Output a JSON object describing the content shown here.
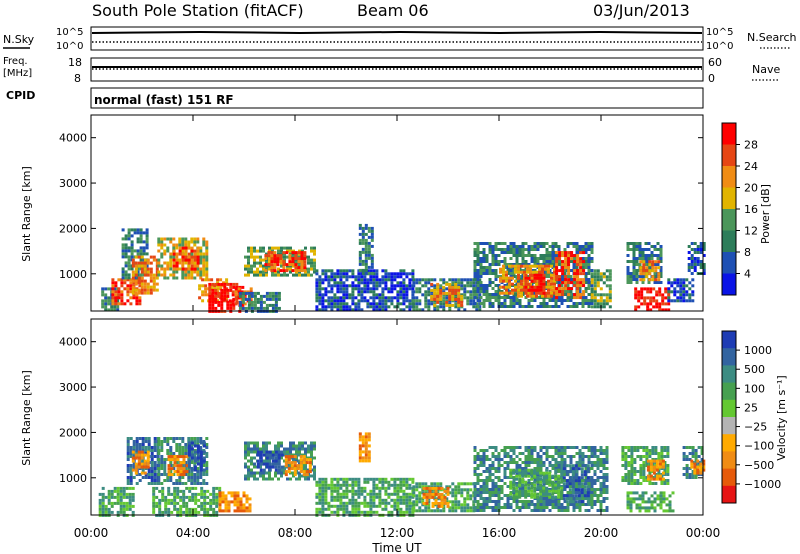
{
  "header": {
    "station": "South Pole Station (fitACF)",
    "beam": "Beam 06",
    "date": "03/Jun/2013"
  },
  "strip_labels": {
    "nsky": "N.Sky",
    "nsky_hi": "10^5",
    "nsky_lo": "10^0",
    "nsearch": "N.Search",
    "nsearch_hi": "10^5",
    "nsearch_lo": "10^0",
    "freq_line1": "Freq.",
    "freq_line2": "[MHz]",
    "freq_hi": "18",
    "freq_lo": "8",
    "nave": "Nave",
    "nave_hi": "60",
    "nave_lo": "0",
    "cpid": "CPID",
    "cpid_value": "normal (fast) 151 RF"
  },
  "chart_data": [
    {
      "type": "heatmap",
      "name": "power",
      "ylabel": "Slant Range [km]",
      "ylim": [
        180,
        4500
      ],
      "yticks": [
        "1000",
        "2000",
        "3000",
        "4000"
      ],
      "xlim_hours": [
        0,
        24
      ],
      "colorbar_label": "Power [dB]",
      "colorbar_ticks": [
        "4",
        "8",
        "12",
        "16",
        "20",
        "24",
        "28"
      ],
      "colors": [
        "#0a14e6",
        "#1e50b4",
        "#2d7d5a",
        "#4b965a",
        "#e1b400",
        "#f08c14",
        "#e64614",
        "#ff0000"
      ],
      "regions": [
        {
          "t0": 0.4,
          "t1": 1.0,
          "r0": 200,
          "r1": 700,
          "level": 2
        },
        {
          "t0": 0.8,
          "t1": 1.9,
          "r0": 350,
          "r1": 900,
          "level": 6
        },
        {
          "t0": 1.2,
          "t1": 2.2,
          "r0": 900,
          "r1": 2000,
          "level": 2
        },
        {
          "t0": 1.6,
          "t1": 2.6,
          "r0": 600,
          "r1": 1400,
          "level": 5
        },
        {
          "t0": 2.6,
          "t1": 4.6,
          "r0": 900,
          "r1": 1800,
          "level": 4
        },
        {
          "t0": 3.2,
          "t1": 4.2,
          "r0": 1100,
          "r1": 1600,
          "level": 6
        },
        {
          "t0": 4.2,
          "t1": 5.3,
          "r0": 400,
          "r1": 900,
          "level": 5
        },
        {
          "t0": 4.6,
          "t1": 6.0,
          "r0": 200,
          "r1": 800,
          "level": 7
        },
        {
          "t0": 5.4,
          "t1": 6.3,
          "r0": 350,
          "r1": 700,
          "level": 6
        },
        {
          "t0": 6.0,
          "t1": 8.8,
          "r0": 1000,
          "r1": 1600,
          "level": 3
        },
        {
          "t0": 6.8,
          "t1": 8.4,
          "r0": 1100,
          "r1": 1500,
          "level": 6
        },
        {
          "t0": 5.8,
          "t1": 7.4,
          "r0": 200,
          "r1": 600,
          "level": 2
        },
        {
          "t0": 8.8,
          "t1": 12.6,
          "r0": 200,
          "r1": 1100,
          "level": 1
        },
        {
          "t0": 10.5,
          "t1": 11.0,
          "r0": 1000,
          "r1": 2100,
          "level": 2
        },
        {
          "t0": 12.6,
          "t1": 15.2,
          "r0": 200,
          "r1": 900,
          "level": 2
        },
        {
          "t0": 13.3,
          "t1": 14.5,
          "r0": 300,
          "r1": 800,
          "level": 5
        },
        {
          "t0": 15.0,
          "t1": 19.6,
          "r0": 300,
          "r1": 1700,
          "level": 2
        },
        {
          "t0": 16.0,
          "t1": 18.2,
          "r0": 500,
          "r1": 1200,
          "level": 5
        },
        {
          "t0": 18.2,
          "t1": 19.3,
          "r0": 500,
          "r1": 1500,
          "level": 6
        },
        {
          "t0": 17.0,
          "t1": 17.8,
          "r0": 600,
          "r1": 1000,
          "level": 7
        },
        {
          "t0": 19.6,
          "t1": 20.4,
          "r0": 300,
          "r1": 1100,
          "level": 3
        },
        {
          "t0": 21.0,
          "t1": 22.4,
          "r0": 800,
          "r1": 1700,
          "level": 2
        },
        {
          "t0": 21.5,
          "t1": 22.3,
          "r0": 900,
          "r1": 1300,
          "level": 5
        },
        {
          "t0": 21.3,
          "t1": 22.6,
          "r0": 200,
          "r1": 700,
          "level": 7
        },
        {
          "t0": 22.6,
          "t1": 23.6,
          "r0": 400,
          "r1": 900,
          "level": 1
        },
        {
          "t0": 23.4,
          "t1": 24.0,
          "r0": 1000,
          "r1": 1700,
          "level": 1
        }
      ]
    },
    {
      "type": "heatmap",
      "name": "velocity",
      "ylabel": "Slant Range [km]",
      "ylim": [
        180,
        4500
      ],
      "yticks": [
        "1000",
        "2000",
        "3000",
        "4000"
      ],
      "xlim_hours": [
        0,
        24
      ],
      "colorbar_label": "Velocity [m s⁻¹]",
      "colorbar_ticks": [
        "1000",
        "500",
        "100",
        "25",
        "−25",
        "−100",
        "−500",
        "−1000"
      ],
      "colors": [
        "#1e3cb4",
        "#3264a0",
        "#3c8c82",
        "#46a050",
        "#64c832",
        "#b4b4b4",
        "#ffaa00",
        "#f08c14",
        "#e65a0a",
        "#e61414"
      ],
      "regions": [
        {
          "t0": 0.3,
          "t1": 1.6,
          "r0": 200,
          "r1": 800,
          "level": 3
        },
        {
          "t0": 1.4,
          "t1": 2.6,
          "r0": 900,
          "r1": 1900,
          "level": 1
        },
        {
          "t0": 1.6,
          "t1": 2.2,
          "r0": 1100,
          "r1": 1600,
          "level": 7
        },
        {
          "t0": 2.6,
          "t1": 4.6,
          "r0": 900,
          "r1": 1900,
          "level": 2
        },
        {
          "t0": 3.0,
          "t1": 3.8,
          "r0": 1100,
          "r1": 1500,
          "level": 7
        },
        {
          "t0": 3.8,
          "t1": 4.5,
          "r0": 1200,
          "r1": 1800,
          "level": 0
        },
        {
          "t0": 2.4,
          "t1": 5.0,
          "r0": 200,
          "r1": 800,
          "level": 3
        },
        {
          "t0": 5.0,
          "t1": 6.2,
          "r0": 300,
          "r1": 700,
          "level": 7
        },
        {
          "t0": 6.0,
          "t1": 8.8,
          "r0": 1000,
          "r1": 1800,
          "level": 2
        },
        {
          "t0": 6.5,
          "t1": 7.5,
          "r0": 1200,
          "r1": 1600,
          "level": 0
        },
        {
          "t0": 7.6,
          "t1": 8.6,
          "r0": 1100,
          "r1": 1500,
          "level": 7
        },
        {
          "t0": 8.8,
          "t1": 12.6,
          "r0": 200,
          "r1": 1000,
          "level": 3
        },
        {
          "t0": 10.5,
          "t1": 10.9,
          "r0": 1400,
          "r1": 2000,
          "level": 7
        },
        {
          "t0": 12.6,
          "t1": 15.0,
          "r0": 300,
          "r1": 900,
          "level": 3
        },
        {
          "t0": 13.0,
          "t1": 14.0,
          "r0": 400,
          "r1": 800,
          "level": 7
        },
        {
          "t0": 15.0,
          "t1": 20.2,
          "r0": 300,
          "r1": 1700,
          "level": 2
        },
        {
          "t0": 16.4,
          "t1": 18.4,
          "r0": 600,
          "r1": 1200,
          "level": 3
        },
        {
          "t0": 18.5,
          "t1": 19.5,
          "r0": 500,
          "r1": 1300,
          "level": 1
        },
        {
          "t0": 20.8,
          "t1": 22.6,
          "r0": 900,
          "r1": 1700,
          "level": 3
        },
        {
          "t0": 21.8,
          "t1": 22.5,
          "r0": 1000,
          "r1": 1400,
          "level": 7
        },
        {
          "t0": 21.0,
          "t1": 22.8,
          "r0": 300,
          "r1": 700,
          "level": 3
        },
        {
          "t0": 23.2,
          "t1": 24.0,
          "r0": 1000,
          "r1": 1700,
          "level": 2
        },
        {
          "t0": 23.5,
          "t1": 24.0,
          "r0": 1100,
          "r1": 1400,
          "level": 7
        }
      ]
    }
  ],
  "xaxis": {
    "label": "Time UT",
    "ticks": [
      "00:00",
      "04:00",
      "08:00",
      "12:00",
      "16:00",
      "20:00",
      "00:00"
    ]
  }
}
